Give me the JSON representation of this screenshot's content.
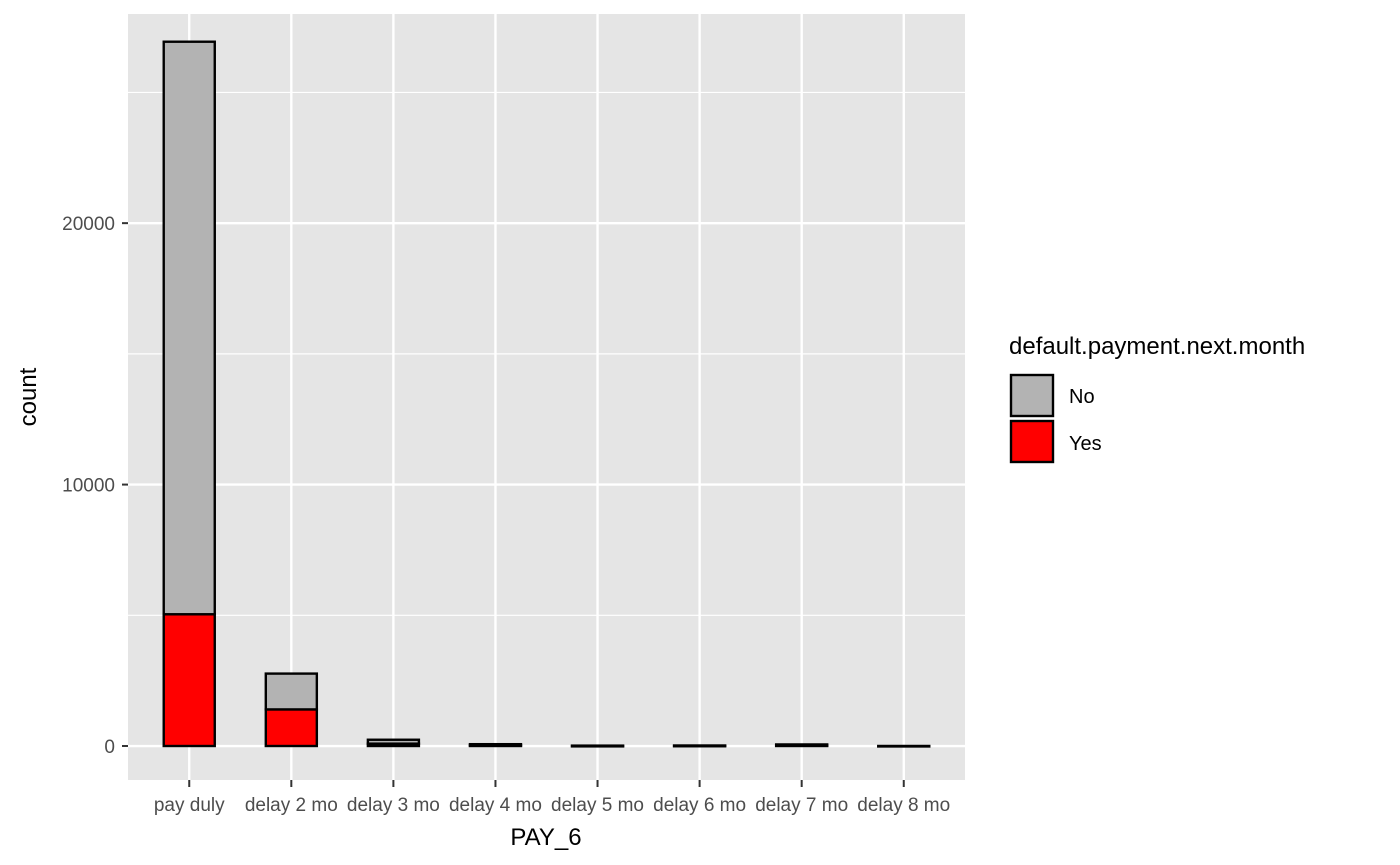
{
  "chart_data": {
    "type": "bar",
    "stacked": true,
    "xlabel": "PAY_6",
    "ylabel": "count",
    "categories": [
      "pay duly",
      "delay 2 mo",
      "delay 3 mo",
      "delay 4 mo",
      "delay 5 mo",
      "delay 6 mo",
      "delay 7 mo",
      "delay 8 mo"
    ],
    "series": [
      {
        "name": "No",
        "values": [
          21900,
          1370,
          150,
          45,
          10,
          10,
          40,
          2
        ]
      },
      {
        "name": "Yes",
        "values": [
          5040,
          1400,
          90,
          25,
          5,
          10,
          20,
          0
        ]
      }
    ],
    "ylim": [
      -1300,
      28000
    ],
    "yticks": [
      0,
      10000,
      20000
    ],
    "ytick_labels": [
      "0",
      "10000",
      "20000"
    ],
    "grid": true,
    "legend": {
      "title": "default.payment.next.month",
      "position": "right",
      "items": [
        {
          "label": "No",
          "color": "#b3b3b3"
        },
        {
          "label": "Yes",
          "color": "#ff0000"
        }
      ]
    },
    "colors": {
      "panel_background": "#e5e5e5",
      "grid": "#ffffff",
      "bar_outline": "#000000",
      "No": "#b3b3b3",
      "Yes": "#ff0000"
    }
  }
}
